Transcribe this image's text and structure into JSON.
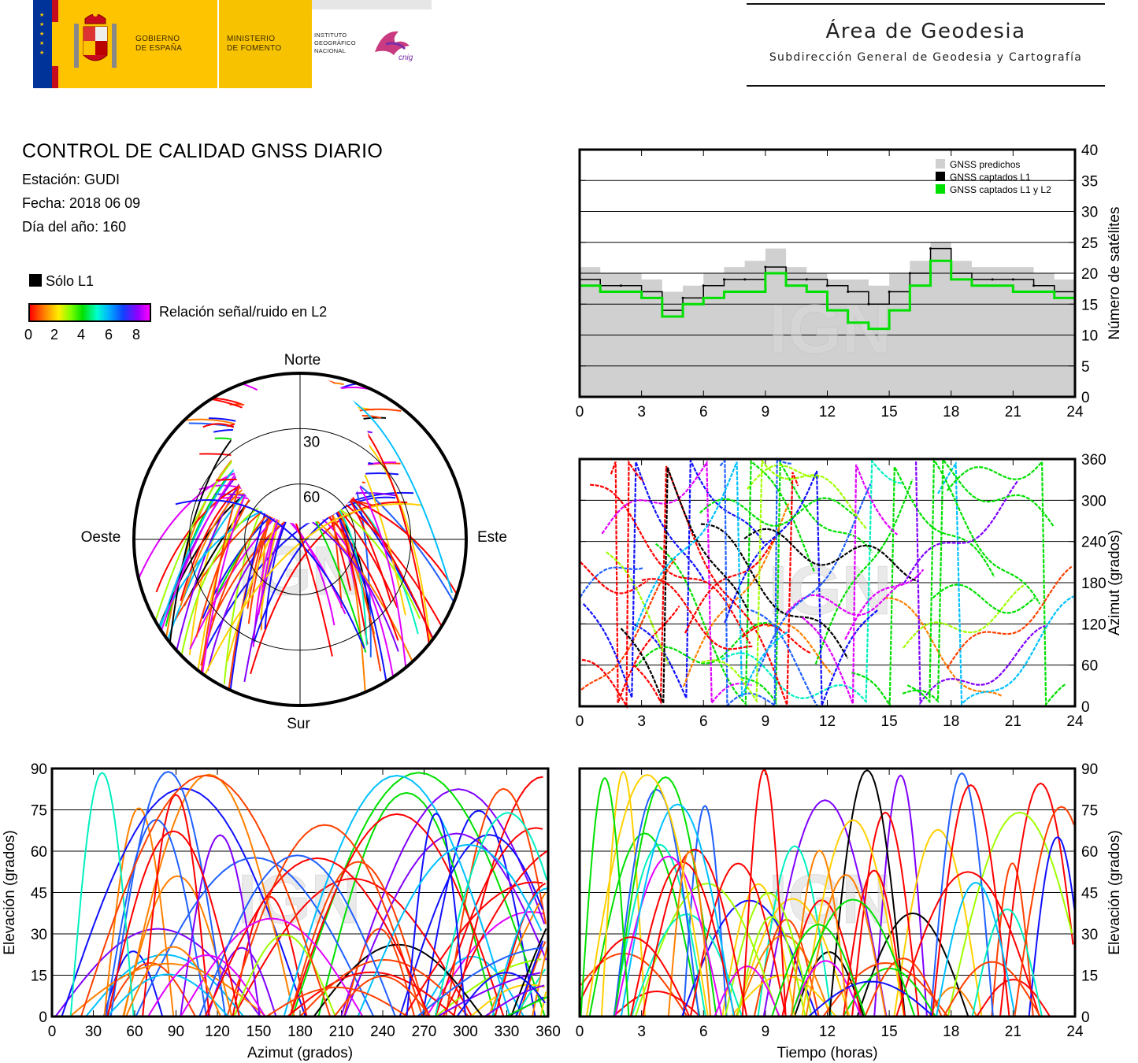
{
  "header": {
    "gov_line1": "GOBIERNO",
    "gov_line2": "DE ESPAÑA",
    "ministry_line1": "MINISTERIO",
    "ministry_line2": "DE FOMENTO",
    "institute_line1": "INSTITUTO",
    "institute_line2": "GEOGRÁFICO",
    "institute_line3": "NACIONAL",
    "cnig": "cnig",
    "area_title": "Área de Geodesia",
    "area_subtitle": "Subdirección General de Geodesia y Cartografía",
    "colors": {
      "flag_red": "#c60b1e",
      "flag_yellow": "#ffc400",
      "eu_blue": "#003399",
      "ministry_yellow": "#f7c300"
    }
  },
  "info": {
    "title": "CONTROL DE CALIDAD GNSS DIARIO",
    "station": "Estación: GUDI",
    "date": "Fecha: 2018 06 09",
    "doy": "Día del año: 160"
  },
  "legend": {
    "l1_only": "Sólo L1",
    "snr_label": "Relación señal/ruido en L2",
    "snr_ticks": [
      "0",
      "2",
      "4",
      "6",
      "8"
    ]
  },
  "watermark": "IGN",
  "chart_data": [
    {
      "id": "satellite-count",
      "type": "step-line",
      "xlabel": "",
      "ylabel": "Número de satélites",
      "xlim": [
        0,
        24
      ],
      "ylim": [
        0,
        40
      ],
      "xticks": [
        "0",
        "3",
        "6",
        "9",
        "12",
        "15",
        "18",
        "21",
        "24"
      ],
      "yticks": [
        "0",
        "5",
        "10",
        "15",
        "20",
        "25",
        "30",
        "35",
        "40"
      ],
      "grid": true,
      "legend_position": "top-right",
      "x": [
        0,
        1,
        2,
        3,
        4,
        5,
        6,
        7,
        8,
        9,
        10,
        11,
        12,
        13,
        14,
        15,
        16,
        17,
        18,
        19,
        20,
        21,
        22,
        23,
        24
      ],
      "series": [
        {
          "name": "GNSS predichos",
          "color": "#d0d0d0",
          "values": [
            21,
            20,
            20,
            19,
            17,
            18,
            20,
            21,
            22,
            24,
            21,
            20,
            19,
            19,
            18,
            20,
            22,
            25,
            22,
            21,
            21,
            21,
            20,
            19,
            19
          ]
        },
        {
          "name": "GNSS captados L1",
          "color": "#000000",
          "values": [
            19,
            18,
            18,
            17,
            14,
            16,
            18,
            19,
            19,
            21,
            19,
            19,
            18,
            17,
            15,
            17,
            20,
            24,
            20,
            19,
            19,
            19,
            18,
            17,
            18
          ]
        },
        {
          "name": "GNSS captados L1 y L2",
          "color": "#00e000",
          "values": [
            18,
            17,
            17,
            16,
            13,
            15,
            16,
            17,
            17,
            20,
            18,
            17,
            14,
            12,
            11,
            14,
            18,
            22,
            19,
            18,
            18,
            17,
            17,
            16,
            16
          ]
        }
      ]
    },
    {
      "id": "azimuth-vs-time",
      "type": "scatter",
      "xlabel": "",
      "ylabel": "Azimut (grados)",
      "xlim": [
        0,
        24
      ],
      "ylim": [
        0,
        360
      ],
      "xticks": [
        "0",
        "3",
        "6",
        "9",
        "12",
        "15",
        "18",
        "21",
        "24"
      ],
      "yticks": [
        "0",
        "60",
        "120",
        "180",
        "240",
        "300",
        "360"
      ],
      "grid": true
    },
    {
      "id": "skyplot",
      "type": "polar-scatter",
      "direction_labels": {
        "north": "Norte",
        "south": "Sur",
        "east": "Este",
        "west": "Oeste"
      },
      "elevation_rings": [
        "30",
        "60"
      ]
    },
    {
      "id": "elevation-vs-azimuth",
      "type": "scatter",
      "xlabel": "Azimut (grados)",
      "ylabel": "Elevación (grados)",
      "xlim": [
        0,
        360
      ],
      "ylim": [
        0,
        90
      ],
      "xticks": [
        "0",
        "30",
        "60",
        "90",
        "120",
        "150",
        "180",
        "210",
        "240",
        "270",
        "300",
        "330",
        "360"
      ],
      "yticks": [
        "0",
        "15",
        "30",
        "45",
        "60",
        "75",
        "90"
      ],
      "grid": true
    },
    {
      "id": "elevation-vs-time",
      "type": "scatter",
      "xlabel": "Tiempo (horas)",
      "ylabel": "Elevación (grados)",
      "xlim": [
        0,
        24
      ],
      "ylim": [
        0,
        90
      ],
      "xticks": [
        "0",
        "3",
        "6",
        "9",
        "12",
        "15",
        "18",
        "21",
        "24"
      ],
      "yticks": [
        "0",
        "15",
        "30",
        "45",
        "60",
        "75",
        "90"
      ],
      "grid": true
    }
  ]
}
